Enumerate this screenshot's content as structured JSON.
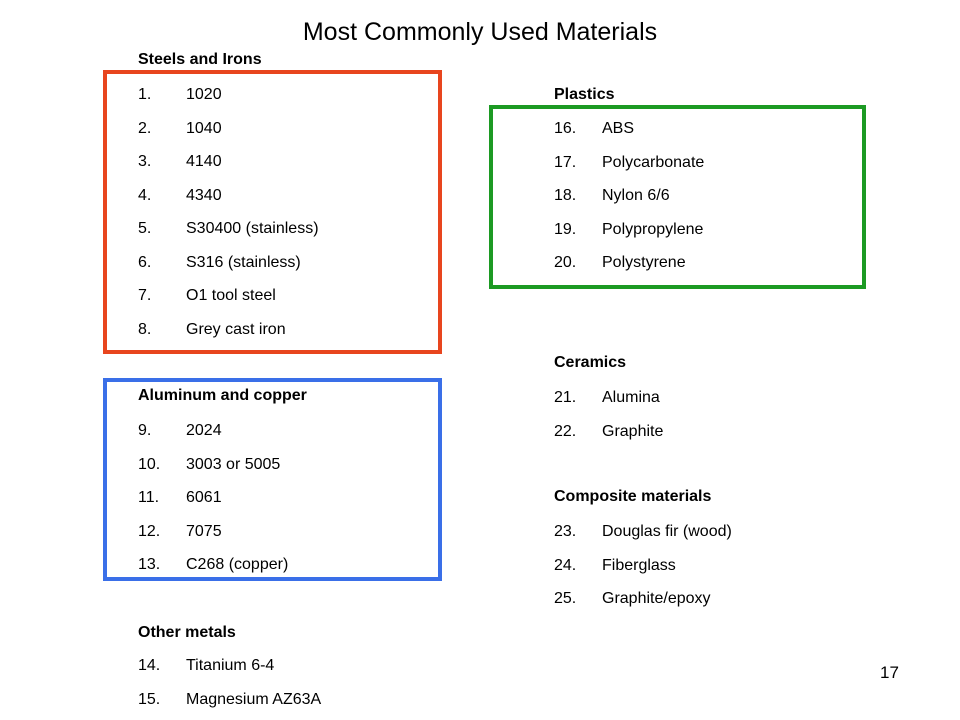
{
  "title": "Most Commonly Used Materials",
  "colors": {
    "steels_box": "#E8451E",
    "aluminum_box": "#3A6FE8",
    "plastics_box": "#1C9A23"
  },
  "sections": {
    "steels": {
      "heading": "Steels and Irons",
      "items": [
        {
          "num": "1.",
          "name": "1020"
        },
        {
          "num": "2.",
          "name": "1040"
        },
        {
          "num": "3.",
          "name": "4140"
        },
        {
          "num": "4.",
          "name": "4340"
        },
        {
          "num": "5.",
          "name": "S30400 (stainless)"
        },
        {
          "num": "6.",
          "name": "S316 (stainless)"
        },
        {
          "num": "7.",
          "name": "O1 tool steel"
        },
        {
          "num": "8.",
          "name": "Grey cast iron"
        }
      ]
    },
    "aluminum": {
      "heading": "Aluminum and copper",
      "items": [
        {
          "num": "9.",
          "name": "2024"
        },
        {
          "num": "10.",
          "name": "3003 or 5005"
        },
        {
          "num": "11.",
          "name": "6061"
        },
        {
          "num": "12.",
          "name": "7075"
        },
        {
          "num": "13.",
          "name": "C268 (copper)"
        }
      ]
    },
    "other": {
      "heading": "Other metals",
      "items": [
        {
          "num": "14.",
          "name": "Titanium 6-4"
        },
        {
          "num": "15.",
          "name": "Magnesium AZ63A"
        }
      ]
    },
    "plastics": {
      "heading": "Plastics",
      "items": [
        {
          "num": "16.",
          "name": "ABS"
        },
        {
          "num": "17.",
          "name": "Polycarbonate"
        },
        {
          "num": "18.",
          "name": "Nylon 6/6"
        },
        {
          "num": "19.",
          "name": "Polypropylene"
        },
        {
          "num": "20.",
          "name": "Polystyrene"
        }
      ]
    },
    "ceramics": {
      "heading": "Ceramics",
      "items": [
        {
          "num": "21.",
          "name": "Alumina"
        },
        {
          "num": "22.",
          "name": "Graphite"
        }
      ]
    },
    "composites": {
      "heading": "Composite materials",
      "items": [
        {
          "num": "23.",
          "name": "Douglas fir (wood)"
        },
        {
          "num": "24.",
          "name": "Fiberglass"
        },
        {
          "num": "25.",
          "name": "Graphite/epoxy"
        }
      ]
    }
  },
  "page_number": "17"
}
